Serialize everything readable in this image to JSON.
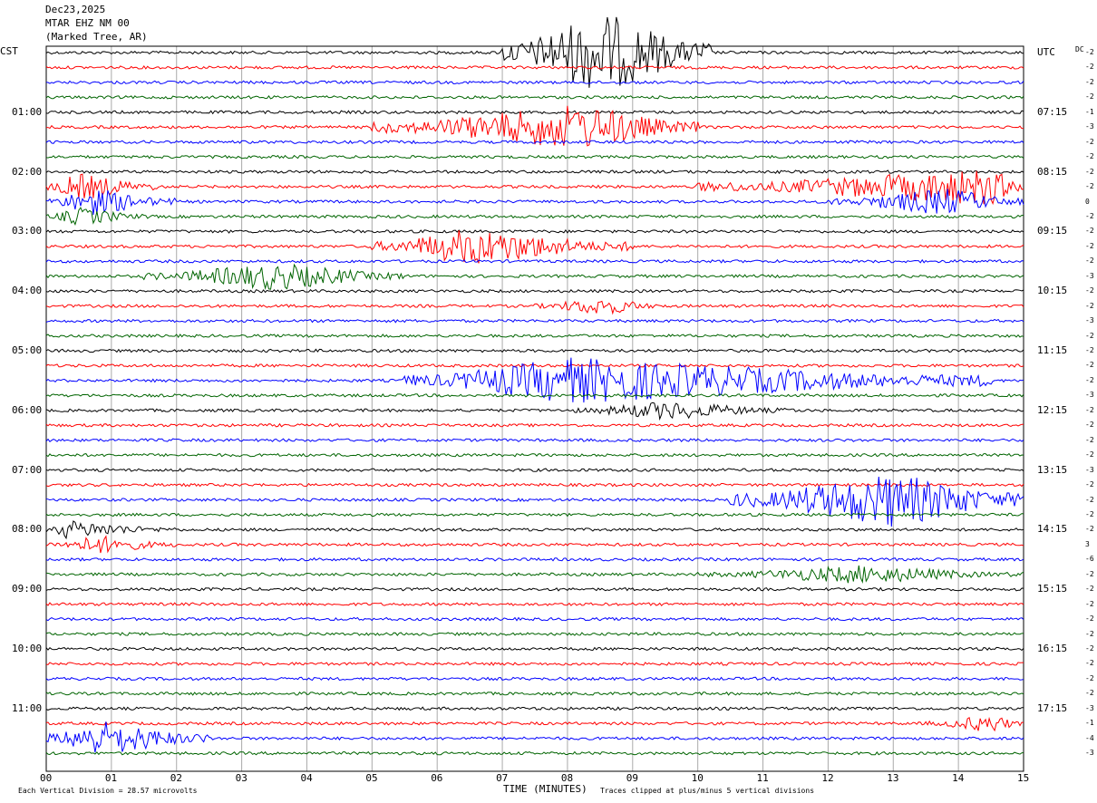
{
  "header": {
    "date": "Dec23,2025",
    "station": "MTAR EHZ NM 00",
    "location": "(Marked Tree, AR)"
  },
  "left_tz": "CST",
  "right_tz": "UTC",
  "dc_label": "DC",
  "colors": {
    "trace_cycle": [
      "#000000",
      "#ff0000",
      "#0000ff",
      "#006400"
    ],
    "grid": "#aaaaaa",
    "frame": "#000000"
  },
  "chart_data": {
    "type": "line",
    "title": "",
    "xlabel": "TIME (MINUTES)",
    "ylabel": "",
    "xlim": [
      0,
      15
    ],
    "x_ticks": [
      "00",
      "01",
      "02",
      "03",
      "04",
      "05",
      "06",
      "07",
      "08",
      "09",
      "10",
      "11",
      "12",
      "13",
      "14",
      "15"
    ],
    "grid": true,
    "row_count": 48,
    "minutes_per_row": 15,
    "left_hour_labels": [
      {
        "row": 4,
        "text": "01:00"
      },
      {
        "row": 8,
        "text": "02:00"
      },
      {
        "row": 12,
        "text": "03:00"
      },
      {
        "row": 16,
        "text": "04:00"
      },
      {
        "row": 20,
        "text": "05:00"
      },
      {
        "row": 24,
        "text": "06:00"
      },
      {
        "row": 28,
        "text": "07:00"
      },
      {
        "row": 32,
        "text": "08:00"
      },
      {
        "row": 36,
        "text": "09:00"
      },
      {
        "row": 40,
        "text": "10:00"
      },
      {
        "row": 44,
        "text": "11:00"
      }
    ],
    "right_hour_labels": [
      {
        "row": 0,
        "text": "UTC"
      },
      {
        "row": 4,
        "text": "07:15"
      },
      {
        "row": 8,
        "text": "08:15"
      },
      {
        "row": 12,
        "text": "09:15"
      },
      {
        "row": 16,
        "text": "10:15"
      },
      {
        "row": 20,
        "text": "11:15"
      },
      {
        "row": 24,
        "text": "12:15"
      },
      {
        "row": 28,
        "text": "13:15"
      },
      {
        "row": 32,
        "text": "14:15"
      },
      {
        "row": 36,
        "text": "15:15"
      },
      {
        "row": 40,
        "text": "16:15"
      },
      {
        "row": 44,
        "text": "17:15"
      }
    ],
    "dc_offsets": [
      "-2",
      "-2",
      "-2",
      "-2",
      "-1",
      "-3",
      "-2",
      "-2",
      "-2",
      "-2",
      "0",
      "-2",
      "-2",
      "-2",
      "-2",
      "-3",
      "-2",
      "-2",
      "-3",
      "-2",
      "-2",
      "-2",
      "-2",
      "-3",
      "-2",
      "-2",
      "-2",
      "-2",
      "-3",
      "-2",
      "-2",
      "-2",
      "-2",
      "3",
      "-6",
      "-2",
      "-2",
      "-2",
      "-2",
      "-2",
      "-2",
      "-2",
      "-2",
      "-2",
      "-3",
      "-1",
      "-4",
      "-3"
    ],
    "events": [
      {
        "row": 0,
        "x_start": 7.0,
        "x_end": 10.2,
        "peak": 8.5,
        "amplitude": 9
      },
      {
        "row": 5,
        "x_start": 5.0,
        "x_end": 10.0,
        "peak": 8.2,
        "amplitude": 5
      },
      {
        "row": 9,
        "x_start": 10.0,
        "x_end": 15.0,
        "peak": 14.5,
        "amplitude": 4
      },
      {
        "row": 9,
        "x_start": 0.0,
        "x_end": 1.7,
        "peak": 0.5,
        "amplitude": 3
      },
      {
        "row": 10,
        "x_start": 12.0,
        "x_end": 15.0,
        "peak": 13.8,
        "amplitude": 3
      },
      {
        "row": 10,
        "x_start": 0.0,
        "x_end": 2.0,
        "peak": 0.7,
        "amplitude": 3
      },
      {
        "row": 11,
        "x_start": 0.0,
        "x_end": 1.6,
        "peak": 0.5,
        "amplitude": 2
      },
      {
        "row": 13,
        "x_start": 5.0,
        "x_end": 9.0,
        "peak": 6.5,
        "amplitude": 4
      },
      {
        "row": 15,
        "x_start": 1.5,
        "x_end": 5.5,
        "peak": 3.5,
        "amplitude": 3
      },
      {
        "row": 17,
        "x_start": 7.5,
        "x_end": 9.5,
        "peak": 8.5,
        "amplitude": 2
      },
      {
        "row": 22,
        "x_start": 5.5,
        "x_end": 14.5,
        "peak": 8.0,
        "amplitude": 5
      },
      {
        "row": 24,
        "x_start": 8.0,
        "x_end": 11.5,
        "peak": 9.5,
        "amplitude": 2
      },
      {
        "row": 30,
        "x_start": 10.5,
        "x_end": 15.0,
        "peak": 13.0,
        "amplitude": 6
      },
      {
        "row": 32,
        "x_start": 0.0,
        "x_end": 2.0,
        "peak": 0.3,
        "amplitude": 2
      },
      {
        "row": 33,
        "x_start": 0.0,
        "x_end": 2.0,
        "peak": 0.8,
        "amplitude": 2
      },
      {
        "row": 35,
        "x_start": 10.0,
        "x_end": 15.0,
        "peak": 12.5,
        "amplitude": 2
      },
      {
        "row": 45,
        "x_start": 13.5,
        "x_end": 15.0,
        "peak": 14.5,
        "amplitude": 2
      },
      {
        "row": 46,
        "x_start": 0.0,
        "x_end": 2.5,
        "peak": 0.8,
        "amplitude": 4
      }
    ]
  },
  "footer": {
    "left": "Each Vertical Division = 28.57 microvolts",
    "right": "Traces clipped at plus/minus 5 vertical divisions"
  }
}
